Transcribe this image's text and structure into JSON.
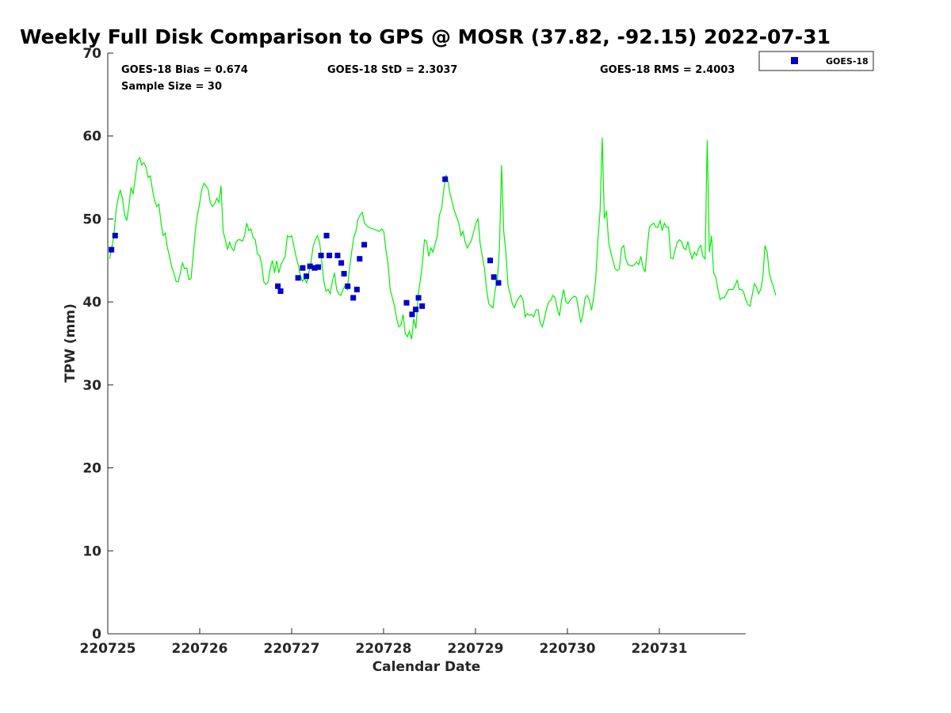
{
  "chart_data": {
    "type": "scatter",
    "title": "Weekly Full Disk Comparison to GPS @ MOSR (37.82, -92.15) 2022-07-31",
    "xlabel": "Calendar Date",
    "ylabel": "TPW (mm)",
    "xlim": [
      0,
      6.94
    ],
    "ylim": [
      0,
      70
    ],
    "yticks": [
      0,
      10,
      20,
      30,
      40,
      50,
      60,
      70
    ],
    "xticks": [
      0,
      1,
      2,
      3,
      4,
      5,
      6
    ],
    "xtick_labels": [
      "220725",
      "220726",
      "220727",
      "220728",
      "220729",
      "220730",
      "220731"
    ],
    "grid": false,
    "legend_position": "top-right, outside plot",
    "stats": {
      "bias": "GOES-18 Bias = 0.674",
      "std": "GOES-18 StD = 2.3037",
      "rms": "GOES-18 RMS = 2.4003",
      "sample_size": "Sample Size = 30"
    },
    "series": [
      {
        "name": "GOES-18",
        "kind": "scatter",
        "color": "#0000cc",
        "points": [
          [
            0.04,
            46.3
          ],
          [
            0.08,
            48.0
          ],
          [
            1.85,
            41.9
          ],
          [
            1.88,
            41.3
          ],
          [
            2.07,
            42.9
          ],
          [
            2.12,
            44.1
          ],
          [
            2.16,
            43.1
          ],
          [
            2.2,
            44.3
          ],
          [
            2.25,
            44.1
          ],
          [
            2.29,
            44.2
          ],
          [
            2.32,
            45.6
          ],
          [
            2.38,
            48.0
          ],
          [
            2.41,
            45.6
          ],
          [
            2.5,
            45.6
          ],
          [
            2.54,
            44.7
          ],
          [
            2.57,
            43.4
          ],
          [
            2.61,
            41.9
          ],
          [
            2.67,
            40.5
          ],
          [
            2.71,
            41.5
          ],
          [
            2.74,
            45.2
          ],
          [
            2.79,
            46.9
          ],
          [
            3.25,
            39.9
          ],
          [
            3.31,
            38.5
          ],
          [
            3.35,
            39.1
          ],
          [
            3.38,
            40.5
          ],
          [
            3.42,
            39.5
          ],
          [
            3.67,
            54.8
          ],
          [
            4.16,
            45.0
          ],
          [
            4.2,
            43.0
          ],
          [
            4.25,
            42.3
          ]
        ]
      },
      {
        "name": "GPS",
        "kind": "line",
        "color": "#00ee00",
        "x_start": 0.02,
        "x_step": 0.0233,
        "y": [
          45.2,
          46.5,
          48.0,
          51.0,
          52.5,
          53.5,
          52.5,
          50.5,
          49.8,
          51.5,
          53.8,
          53.0,
          55.0,
          57.0,
          57.4,
          56.5,
          56.8,
          56.2,
          55.0,
          55.2,
          53.5,
          52.2,
          51.5,
          51.8,
          49.5,
          48.0,
          48.3,
          46.5,
          45.5,
          44.2,
          43.5,
          42.5,
          42.4,
          43.5,
          44.7,
          44.0,
          44.1,
          42.7,
          42.8,
          45.5,
          48.5,
          50.5,
          51.8,
          53.5,
          54.3,
          54.0,
          53.6,
          52.0,
          51.5,
          51.8,
          52.5,
          52.0,
          54.0,
          48.5,
          47.5,
          46.3,
          47.2,
          46.5,
          46.2,
          47.2,
          47.5,
          47.5,
          47.3,
          48.0,
          49.5,
          48.6,
          48.8,
          47.8,
          47.5,
          45.8,
          45.6,
          44.5,
          42.4,
          42.1,
          42.4,
          44.0,
          45.0,
          43.5,
          45.0,
          43.5,
          44.5,
          45.0,
          45.5,
          48.0,
          47.8,
          48.0,
          46.8,
          45.5,
          44.5,
          43.2,
          42.5,
          42.8,
          42.3,
          43.5,
          44.8,
          46.7,
          47.5,
          48.0,
          47.2,
          45.0,
          42.5,
          41.3,
          41.5,
          41.0,
          42.5,
          43.5,
          41.5,
          41.0,
          40.8,
          41.5,
          42.0,
          41.5,
          44.0,
          46.0,
          47.8,
          48.5,
          50.0,
          50.5,
          50.8,
          49.5,
          49.2,
          49.0,
          48.9,
          48.8,
          48.7,
          48.6,
          48.5,
          48.8,
          48.5,
          46.2,
          44.5,
          41.5,
          40.5,
          39.5,
          38.0,
          37.0,
          37.2,
          38.5,
          36.2,
          35.8,
          36.5,
          35.5,
          38.0,
          36.8,
          40.8,
          42.5,
          44.5,
          47.5,
          47.3,
          45.5,
          46.5,
          46.0,
          47.0,
          48.0,
          50.5,
          51.2,
          53.5,
          55.3,
          54.5,
          53.0,
          52.0,
          51.0,
          50.2,
          49.5,
          48.0,
          48.5,
          47.2,
          46.5,
          47.0,
          47.5,
          48.5,
          49.5,
          50.0,
          47.0,
          45.5,
          44.0,
          41.5,
          39.8,
          39.5,
          39.3,
          41.5,
          42.5,
          46.5,
          56.5,
          48.5,
          46.0,
          42.0,
          41.0,
          39.8,
          39.3,
          40.0,
          40.5,
          40.8,
          40.3,
          38.2,
          38.6,
          38.4,
          38.5,
          38.2,
          39.0,
          39.1,
          37.5,
          37.0,
          38.0,
          39.2,
          40.0,
          40.2,
          40.8,
          40.5,
          39.2,
          38.3,
          40.2,
          41.5,
          40.0,
          39.8,
          40.2,
          40.5,
          40.7,
          40.5,
          39.0,
          37.5,
          38.5,
          40.5,
          40.8,
          40.2,
          39.0,
          40.5,
          43.0,
          47.5,
          51.0,
          59.8,
          50.0,
          51.0,
          47.2,
          46.0,
          45.0,
          44.0,
          43.8,
          44.0,
          46.5,
          46.8,
          45.2,
          44.5,
          44.4,
          44.3,
          44.5,
          44.8,
          44.5,
          45.5,
          44.2,
          43.6,
          46.5,
          49.0,
          49.3,
          49.5,
          49.0,
          49.0,
          49.8,
          48.6,
          49.5,
          49.0,
          49.0,
          45.3,
          45.2,
          46.2,
          47.2,
          47.5,
          47.3,
          46.5,
          46.3,
          47.3,
          46.0,
          45.2,
          46.0,
          45.6,
          46.5,
          46.8,
          45.5,
          45.2,
          59.5,
          46.0,
          48.0,
          43.5,
          43.0,
          41.5,
          40.3,
          40.5,
          40.5,
          41.0,
          41.5,
          41.5,
          41.5,
          42.0,
          42.6,
          41.5,
          41.5,
          41.2,
          40.3,
          39.7,
          39.5,
          40.8,
          42.2,
          41.8,
          41.0,
          41.5,
          43.0,
          46.8,
          46.0,
          43.5,
          42.5,
          41.8,
          40.8
        ]
      }
    ]
  }
}
